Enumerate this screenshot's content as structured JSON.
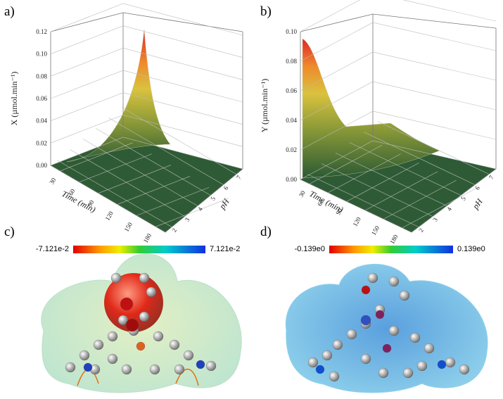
{
  "panels": [
    {
      "label": "a)",
      "z_title": "X (µmol.min⁻¹)",
      "z_ticks": [
        "0.00",
        "0.02",
        "0.04",
        "0.06",
        "0.08",
        "0.10",
        "0.12"
      ],
      "time_title": "Time (min)",
      "time_ticks": [
        "30",
        "60",
        "90",
        "120",
        "150",
        "180"
      ],
      "ph_title": "pH",
      "ph_ticks": [
        "2",
        "3",
        "4",
        "5",
        "6",
        "7"
      ]
    },
    {
      "label": "b)",
      "z_title": "Y (µmol.min⁻¹)",
      "z_ticks": [
        "0.00",
        "0.02",
        "0.04",
        "0.06",
        "0.08",
        "0.10"
      ],
      "time_title": "Time (min)",
      "time_ticks": [
        "30",
        "60",
        "90",
        "120",
        "150",
        "180"
      ],
      "ph_title": "pH",
      "ph_ticks": [
        "2",
        "3",
        "4",
        "5",
        "6",
        "7"
      ]
    },
    {
      "label": "c)",
      "colorbar_min": "-7.121e-2",
      "colorbar_max": "7.121e-2"
    },
    {
      "label": "d)",
      "colorbar_min": "-0.139e0",
      "colorbar_max": "0.139e0"
    }
  ]
}
